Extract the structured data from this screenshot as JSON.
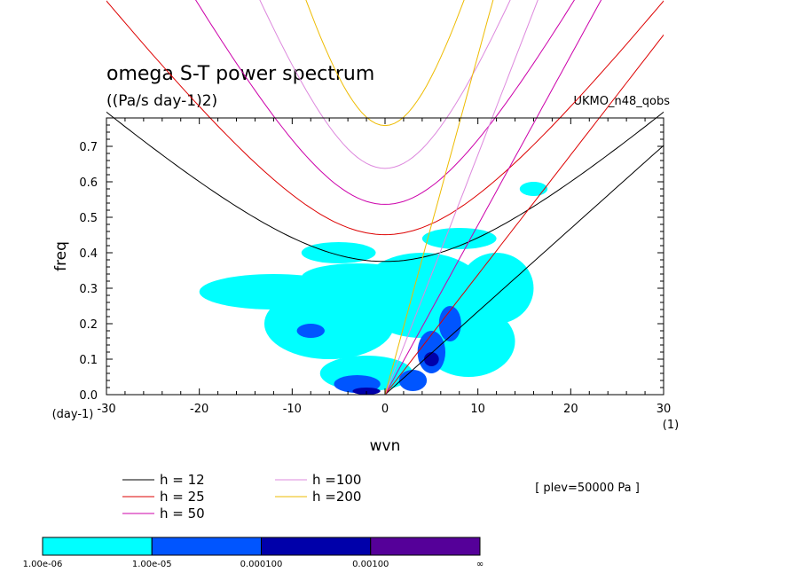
{
  "chart_data": {
    "type": "contour",
    "title": "omega S-T power spectrum",
    "subtitle": "((Pa/s day-1)2)",
    "dataset_label": "UKMO_n48_qobs",
    "xlabel": "wvn",
    "ylabel": "freq",
    "x_unit": "(1)",
    "y_unit": "(day-1)",
    "xlim": [
      -30,
      30
    ],
    "ylim": [
      0,
      0.78
    ],
    "x_ticks": [
      -30,
      -20,
      -10,
      0,
      10,
      20,
      30
    ],
    "x_tick_labels": [
      "-30",
      "-20",
      "-10",
      "0",
      "10",
      "20",
      "30"
    ],
    "y_ticks": [
      0.0,
      0.1,
      0.2,
      0.3,
      0.4,
      0.5,
      0.6,
      0.7
    ],
    "y_tick_labels": [
      "0.0",
      "0.1",
      "0.2",
      "0.3",
      "0.4",
      "0.5",
      "0.6",
      "0.7"
    ],
    "plev_label": "[ plev=50000 Pa ]",
    "dispersion_curves": [
      {
        "label": "h = 12",
        "h": 12,
        "color": "#000000"
      },
      {
        "label": "h = 25",
        "h": 25,
        "color": "#dd0000"
      },
      {
        "label": "h = 50",
        "h": 50,
        "color": "#cc00aa"
      },
      {
        "label": "h =100",
        "h": 100,
        "color": "#dd88dd"
      },
      {
        "label": "h =200",
        "h": 200,
        "color": "#eebb00"
      }
    ],
    "color_levels": [
      {
        "label": "1.00e-06",
        "color": "#00ffff"
      },
      {
        "label": "1.00e-05",
        "color": "#0055ff"
      },
      {
        "label": "0.000100",
        "color": "#0000aa"
      },
      {
        "label": "0.00100",
        "color": "#550099"
      }
    ],
    "color_end_label": "∞",
    "contour_blobs": [
      {
        "x": -12,
        "y": 0.29,
        "rx": 8,
        "ry": 0.05,
        "level": 0
      },
      {
        "x": -6,
        "y": 0.2,
        "rx": 7,
        "ry": 0.1,
        "level": 0
      },
      {
        "x": -3,
        "y": 0.33,
        "rx": 6,
        "ry": 0.04,
        "level": 0
      },
      {
        "x": 4,
        "y": 0.28,
        "rx": 7,
        "ry": 0.12,
        "level": 0
      },
      {
        "x": 9,
        "y": 0.15,
        "rx": 5,
        "ry": 0.1,
        "level": 0
      },
      {
        "x": 12,
        "y": 0.3,
        "rx": 4,
        "ry": 0.1,
        "level": 0
      },
      {
        "x": -5,
        "y": 0.4,
        "rx": 4,
        "ry": 0.03,
        "level": 0
      },
      {
        "x": 8,
        "y": 0.44,
        "rx": 4,
        "ry": 0.03,
        "level": 0
      },
      {
        "x": -2,
        "y": 0.06,
        "rx": 5,
        "ry": 0.05,
        "level": 0
      },
      {
        "x": 16,
        "y": 0.58,
        "rx": 1.5,
        "ry": 0.02,
        "level": 0
      },
      {
        "x": 5,
        "y": 0.12,
        "rx": 1.5,
        "ry": 0.06,
        "level": 1
      },
      {
        "x": -3,
        "y": 0.03,
        "rx": 2.5,
        "ry": 0.025,
        "level": 1
      },
      {
        "x": 3,
        "y": 0.04,
        "rx": 1.5,
        "ry": 0.03,
        "level": 1
      },
      {
        "x": 7,
        "y": 0.2,
        "rx": 1.2,
        "ry": 0.05,
        "level": 1
      },
      {
        "x": -8,
        "y": 0.18,
        "rx": 1.5,
        "ry": 0.02,
        "level": 1
      },
      {
        "x": -2,
        "y": 0.01,
        "rx": 1.5,
        "ry": 0.01,
        "level": 2
      },
      {
        "x": 5,
        "y": 0.1,
        "rx": 0.8,
        "ry": 0.02,
        "level": 2
      }
    ]
  }
}
